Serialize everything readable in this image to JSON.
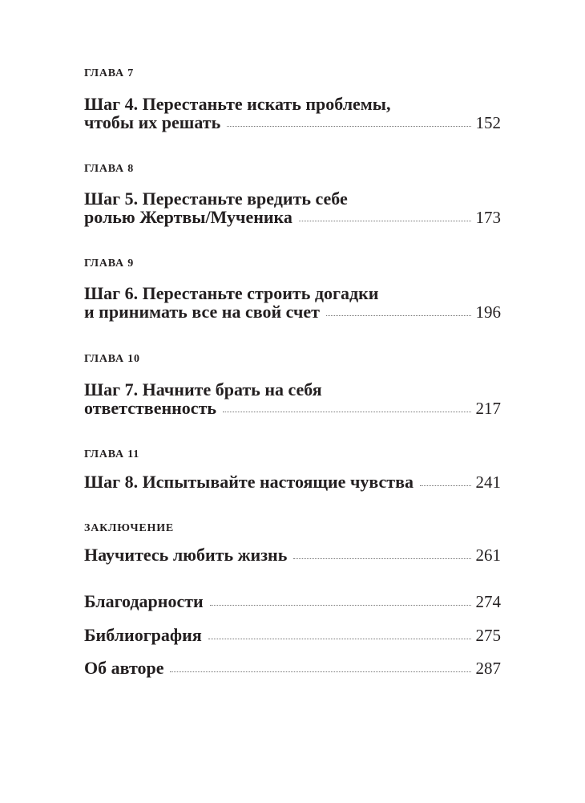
{
  "entries": [
    {
      "chapter": "ГЛАВА 7",
      "line1": "Шаг 4. Перестаньте искать проблемы,",
      "line2": "чтобы их решать",
      "page": "152"
    },
    {
      "chapter": "ГЛАВА 8",
      "line1": "Шаг 5. Перестаньте вредить себе",
      "line2": "ролью Жертвы/Мученика",
      "page": "173"
    },
    {
      "chapter": "ГЛАВА 9",
      "line1": "Шаг 6. Перестаньте строить догадки",
      "line2": "и принимать все на свой счет",
      "page": "196"
    },
    {
      "chapter": "ГЛАВА 10",
      "line1": "Шаг 7. Начните брать на себя",
      "line2": "ответственность",
      "page": "217"
    },
    {
      "chapter": "ГЛАВА 11",
      "line2": "Шаг 8. Испытывайте настоящие чувства",
      "page": "241"
    },
    {
      "chapter": "ЗАКЛЮЧЕНИЕ",
      "line2": "Научитесь любить жизнь",
      "page": "261"
    },
    {
      "line2": "Благодарности",
      "page": "274"
    },
    {
      "line2": "Библиография",
      "page": "275"
    },
    {
      "line2": "Об авторе",
      "page": "287"
    }
  ]
}
